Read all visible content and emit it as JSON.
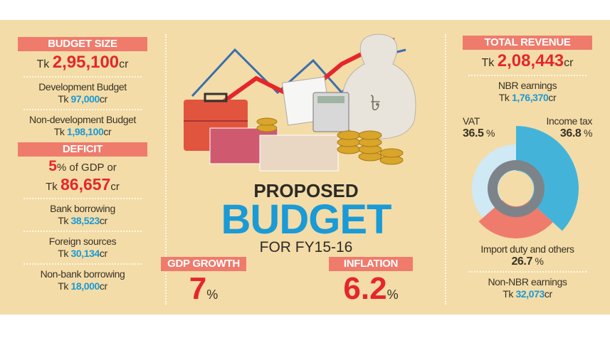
{
  "left": {
    "budget_size": {
      "title": "BUDGET SIZE",
      "prefix": "Tk",
      "value": "2,95,100",
      "unit": "cr"
    },
    "development": {
      "label": "Development Budget",
      "prefix": "Tk",
      "value": "97,000",
      "unit": "cr"
    },
    "non_development": {
      "label": "Non-development Budget",
      "prefix": "Tk",
      "value": "1,98,100",
      "unit": "cr"
    },
    "deficit": {
      "title": "DEFICIT",
      "pct": "5",
      "pct_suffix": "% of GDP or",
      "prefix": "Tk",
      "value": "86,657",
      "unit": "cr"
    },
    "items": [
      {
        "label": "Bank borrowing",
        "prefix": "Tk",
        "value": "38,523",
        "unit": "cr"
      },
      {
        "label": "Foreign sources",
        "prefix": "Tk",
        "value": "30,134",
        "unit": "cr"
      },
      {
        "label": "Non-bank borrowing",
        "prefix": "Tk",
        "value": "18,000",
        "unit": "cr"
      }
    ]
  },
  "center": {
    "proposed": "PROPOSED",
    "budget": "BUDGET",
    "fy": "FOR FY15-16",
    "gdp": {
      "title": "GDP GROWTH",
      "value": "7",
      "unit": "%"
    },
    "inflation": {
      "title": "INFLATION",
      "value": "6.2",
      "unit": "%"
    }
  },
  "right": {
    "total": {
      "title": "TOTAL REVENUE",
      "prefix": "Tk",
      "value": "2,08,443",
      "unit": "cr"
    },
    "nbr": {
      "label": "NBR earnings",
      "prefix": "Tk",
      "value": "1,76,370",
      "unit": "cr"
    },
    "donut": [
      {
        "label": "Income tax",
        "value": "36.8",
        "unit": "%",
        "color": "#44b3da"
      },
      {
        "label": "Import duty and others",
        "value": "26.7",
        "unit": "%",
        "color": "#ef7b6c"
      },
      {
        "label": "VAT",
        "value": "36.5",
        "unit": "%",
        "color": "#cfe9f5"
      }
    ],
    "non_nbr": {
      "label": "Non-NBR earnings",
      "prefix": "Tk",
      "value": "32,073",
      "unit": "cr"
    }
  },
  "colors": {
    "background": "#f3dca8",
    "banner": "#ef7b6c",
    "red": "#e5262b",
    "blue": "#1a9ad6"
  }
}
